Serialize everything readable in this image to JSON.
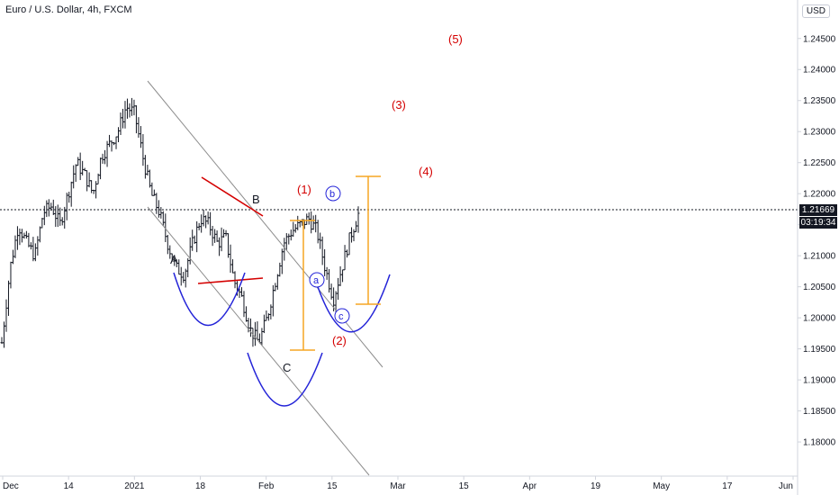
{
  "header": {
    "title": "Euro / U.S. Dollar, 4h, FXCM",
    "currency": "USD"
  },
  "price_tags": {
    "last_price": "1.21669",
    "countdown": "03:19:34"
  },
  "colors": {
    "candles": "#131722",
    "channel": "#8c8c8c",
    "red_wave": "#d40000",
    "blue_arc": "#2424d8",
    "orange_measure": "#f5a623",
    "dotted_price": "#131722"
  },
  "chart_data": {
    "type": "candlestick",
    "y_axis": {
      "ticks": [
        "1.24500",
        "1.24000",
        "1.23500",
        "1.23000",
        "1.22500",
        "1.22000",
        "1.21500",
        "1.21000",
        "1.20500",
        "1.20000",
        "1.19500",
        "1.19000",
        "1.18500",
        "1.18000"
      ],
      "range": [
        1.1745,
        1.2512
      ]
    },
    "x_axis": {
      "ticks": [
        "Dec",
        "14",
        "2021",
        "18",
        "Feb",
        "15",
        "Mar",
        "15",
        "Apr",
        "19",
        "May",
        "17",
        "Jun"
      ]
    },
    "price_path": [
      [
        0,
        1.196
      ],
      [
        1,
        1.208
      ],
      [
        2,
        1.215
      ],
      [
        3,
        1.212
      ],
      [
        4,
        1.21
      ],
      [
        5,
        1.217
      ],
      [
        6,
        1.218
      ],
      [
        7,
        1.215
      ],
      [
        8,
        1.22
      ],
      [
        9,
        1.225
      ],
      [
        10,
        1.223
      ],
      [
        11,
        1.22
      ],
      [
        12,
        1.226
      ],
      [
        13,
        1.228
      ],
      [
        14,
        1.23
      ],
      [
        15,
        1.234
      ],
      [
        16,
        1.233
      ],
      [
        17,
        1.226
      ],
      [
        18,
        1.22
      ],
      [
        19,
        1.217
      ],
      [
        20,
        1.212
      ],
      [
        21,
        1.208
      ],
      [
        22,
        1.207
      ],
      [
        23,
        1.212
      ],
      [
        24,
        1.216
      ],
      [
        25,
        1.215
      ],
      [
        26,
        1.212
      ],
      [
        27,
        1.213
      ],
      [
        28,
        1.206
      ],
      [
        29,
        1.203
      ],
      [
        30,
        1.198
      ],
      [
        31,
        1.196
      ],
      [
        32,
        1.2
      ],
      [
        33,
        1.206
      ],
      [
        34,
        1.212
      ],
      [
        35,
        1.214
      ],
      [
        36,
        1.215
      ],
      [
        37,
        1.216
      ],
      [
        38,
        1.214
      ],
      [
        39,
        1.208
      ],
      [
        40,
        1.203
      ],
      [
        41,
        1.208
      ],
      [
        42,
        1.213
      ],
      [
        43,
        1.2167
      ]
    ],
    "annotations": {
      "wave_labels_red": [
        "(1)",
        "(2)",
        "(3)",
        "(4)",
        "(5)"
      ],
      "wave_labels_black": [
        "A",
        "B",
        "C"
      ],
      "wave_labels_blue": [
        "a",
        "b",
        "c"
      ]
    },
    "grid": false
  }
}
